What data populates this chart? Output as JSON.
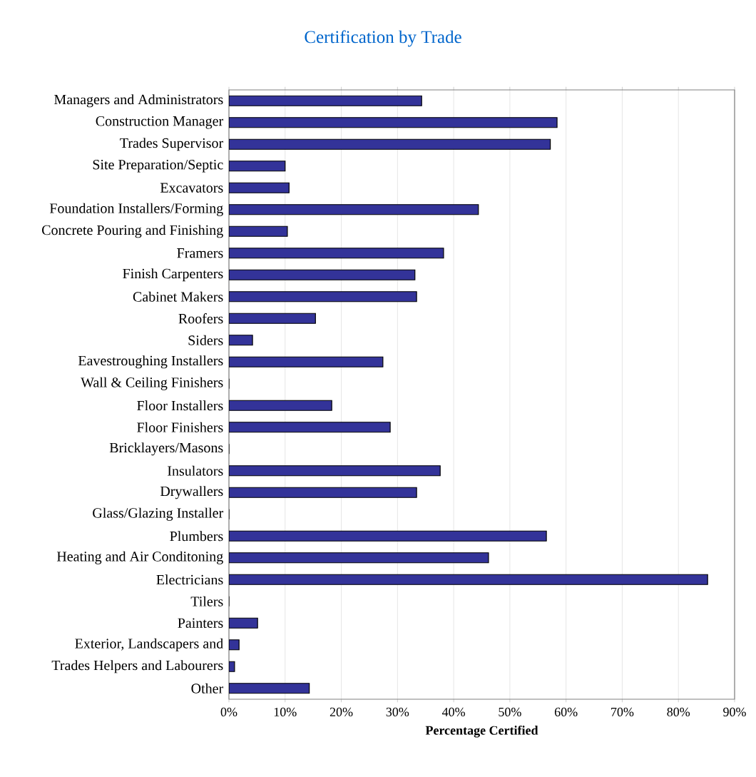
{
  "chart_data": {
    "type": "bar",
    "orientation": "horizontal",
    "title": "Certification by Trade",
    "xlabel": "Percentage Certified",
    "categories": [
      "Managers and Administrators",
      "Construction Manager",
      "Trades Supervisor",
      "Site Preparation/Septic",
      "Excavators",
      "Foundation Installers/Forming",
      "Concrete Pouring and Finishing",
      "Framers",
      "Finish Carpenters",
      "Cabinet Makers",
      "Roofers",
      "Siders",
      "Eavestroughing Installers",
      "Wall & Ceiling Finishers",
      "Floor Installers",
      "Floor Finishers",
      "Bricklayers/Masons",
      "Insulators",
      "Drywallers",
      "Glass/Glazing Installer",
      "Plumbers",
      "Heating and Air Conditoning",
      "Electricians",
      "Tilers",
      "Painters",
      "Exterior, Landscapers and",
      "Trades Helpers and Labourers",
      "Other"
    ],
    "values": [
      34.3,
      58.4,
      57.2,
      10.0,
      10.7,
      44.4,
      10.4,
      38.2,
      33.1,
      33.4,
      15.4,
      4.2,
      27.4,
      0,
      18.3,
      28.7,
      0,
      37.6,
      33.4,
      0,
      56.5,
      46.2,
      85.2,
      0,
      5.1,
      1.8,
      1.0,
      14.3
    ],
    "color": "#333399",
    "xlim": [
      0,
      90
    ],
    "xticks": [
      {
        "value": 0,
        "label": "0%"
      },
      {
        "value": 10,
        "label": "10%"
      },
      {
        "value": 20,
        "label": "20%"
      },
      {
        "value": 30,
        "label": "30%"
      },
      {
        "value": 40,
        "label": "40%"
      },
      {
        "value": 50,
        "label": "50%"
      },
      {
        "value": 60,
        "label": "60%"
      },
      {
        "value": 70,
        "label": "70%"
      },
      {
        "value": 80,
        "label": "80%"
      },
      {
        "value": 90,
        "label": "90%"
      }
    ],
    "grid": "x"
  }
}
